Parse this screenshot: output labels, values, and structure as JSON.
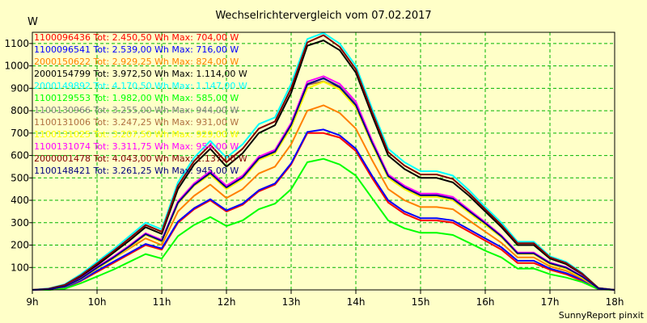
{
  "chart_data": {
    "type": "line",
    "title": "Wechselrichtervergleich vom 07.02.2017",
    "ylabel": "W",
    "ylim": [
      0,
      1150
    ],
    "yticks": [
      100,
      200,
      300,
      400,
      500,
      600,
      700,
      800,
      900,
      1000,
      1100
    ],
    "xlabels": [
      "9h",
      "10h",
      "11h",
      "12h",
      "13h",
      "14h",
      "15h",
      "16h",
      "17h",
      "18h"
    ],
    "xlim": [
      9,
      18
    ],
    "grid": true,
    "legend_position": "top-left",
    "footer": "SunnyReport pinxit",
    "x": [
      9,
      9.25,
      9.5,
      9.75,
      10,
      10.25,
      10.5,
      10.75,
      11,
      11.25,
      11.5,
      11.75,
      12,
      12.25,
      12.5,
      12.75,
      13,
      13.25,
      13.5,
      13.75,
      14,
      14.25,
      14.5,
      14.75,
      15,
      15.25,
      15.5,
      15.75,
      16,
      16.25,
      16.5,
      16.75,
      17,
      17.25,
      17.5,
      17.75,
      18
    ],
    "series": [
      {
        "name": "1100096436 Tot: 2.450,50 Wh Max: 704,00 W",
        "color": "#ff0000",
        "values": [
          0,
          0,
          10,
          40,
          80,
          120,
          160,
          200,
          180,
          300,
          360,
          400,
          350,
          380,
          440,
          470,
          560,
          700,
          700,
          680,
          620,
          500,
          390,
          340,
          310,
          310,
          300,
          260,
          220,
          180,
          120,
          120,
          90,
          70,
          40,
          5,
          0
        ]
      },
      {
        "name": "1100096541 Tot: 2.539,00 Wh Max: 716,00 W",
        "color": "#0000ff",
        "values": [
          0,
          0,
          12,
          42,
          85,
          125,
          165,
          205,
          185,
          305,
          365,
          405,
          355,
          385,
          445,
          475,
          565,
          705,
          716,
          690,
          630,
          510,
          400,
          350,
          320,
          320,
          310,
          270,
          230,
          190,
          130,
          130,
          95,
          75,
          45,
          5,
          0
        ]
      },
      {
        "name": "2000150622 Tot: 2.929,25 Wh Max: 824,00 W",
        "color": "#ff8000",
        "values": [
          0,
          0,
          15,
          50,
          95,
          140,
          185,
          230,
          200,
          350,
          420,
          470,
          410,
          450,
          520,
          550,
          650,
          800,
          824,
          790,
          720,
          580,
          450,
          400,
          370,
          370,
          360,
          310,
          260,
          210,
          145,
          145,
          105,
          85,
          50,
          6,
          0
        ]
      },
      {
        "name": "2000154799 Tot: 3.972,50 Wh Max: 1.114,00 W",
        "color": "#000000",
        "values": [
          0,
          5,
          20,
          60,
          110,
          165,
          220,
          280,
          250,
          450,
          560,
          630,
          550,
          610,
          700,
          735,
          880,
          1090,
          1114,
          1070,
          970,
          780,
          600,
          540,
          500,
          500,
          480,
          420,
          350,
          280,
          200,
          200,
          140,
          115,
          70,
          8,
          0
        ]
      },
      {
        "name": "2000149892 Tot: 4.170,50 Wh Max: 1.147,00 W",
        "color": "#00ffff",
        "values": [
          0,
          6,
          25,
          70,
          125,
          180,
          240,
          300,
          270,
          480,
          590,
          665,
          590,
          650,
          740,
          770,
          920,
          1120,
          1147,
          1100,
          1000,
          810,
          630,
          570,
          530,
          530,
          510,
          445,
          370,
          300,
          215,
          215,
          150,
          125,
          75,
          8,
          0
        ]
      },
      {
        "name": "1100129553 Tot: 1.982,00 Wh Max: 585,00 W",
        "color": "#00ff00",
        "values": [
          0,
          0,
          5,
          30,
          60,
          90,
          125,
          160,
          140,
          240,
          290,
          325,
          285,
          310,
          360,
          385,
          450,
          570,
          585,
          560,
          510,
          410,
          310,
          275,
          255,
          255,
          245,
          210,
          175,
          145,
          95,
          95,
          70,
          55,
          35,
          3,
          0
        ]
      },
      {
        "name": "1100130966 Tot: 3.255,00 Wh Max: 944,00 W",
        "color": "#808080",
        "values": [
          0,
          2,
          15,
          50,
          100,
          145,
          195,
          250,
          220,
          390,
          470,
          525,
          460,
          505,
          590,
          620,
          740,
          920,
          944,
          910,
          830,
          660,
          510,
          460,
          425,
          425,
          410,
          355,
          300,
          240,
          165,
          165,
          120,
          100,
          60,
          6,
          0
        ]
      },
      {
        "name": "1100131006 Tot: 3.247,25 Wh Max: 931,00 W",
        "color": "#b07040",
        "values": [
          0,
          2,
          15,
          50,
          98,
          143,
          193,
          248,
          218,
          388,
          468,
          520,
          455,
          500,
          585,
          615,
          735,
          915,
          931,
          900,
          820,
          655,
          505,
          455,
          420,
          420,
          405,
          350,
          295,
          238,
          162,
          162,
          118,
          98,
          58,
          6,
          0
        ]
      },
      {
        "name": "1100131025 Tot: 3.207,50 Wh Max: 929,00 W",
        "color": "#ffff00",
        "values": [
          0,
          2,
          14,
          48,
          95,
          140,
          190,
          245,
          215,
          385,
          465,
          515,
          450,
          495,
          580,
          610,
          725,
          900,
          929,
          895,
          815,
          650,
          500,
          450,
          415,
          415,
          400,
          345,
          290,
          235,
          160,
          160,
          115,
          95,
          55,
          6,
          0
        ]
      },
      {
        "name": "1100131074 Tot: 3.311,75 Wh Max: 954,00 W",
        "color": "#ff00ff",
        "values": [
          0,
          2,
          16,
          52,
          102,
          148,
          198,
          253,
          223,
          395,
          476,
          530,
          465,
          510,
          595,
          625,
          745,
          930,
          954,
          920,
          840,
          668,
          515,
          465,
          430,
          430,
          415,
          358,
          302,
          243,
          167,
          167,
          122,
          102,
          61,
          6,
          0
        ]
      },
      {
        "name": "2000001478 Tot: 4.043,00 Wh Max: 1.137,00 W",
        "color": "#800000",
        "values": [
          0,
          5,
          22,
          65,
          118,
          172,
          230,
          290,
          260,
          465,
          575,
          648,
          570,
          630,
          720,
          752,
          900,
          1105,
          1137,
          1085,
          985,
          795,
          615,
          555,
          515,
          515,
          495,
          432,
          360,
          290,
          208,
          208,
          145,
          120,
          72,
          8,
          0
        ]
      },
      {
        "name": "1100148421 Tot: 3.261,25 Wh Max: 945,00 W",
        "color": "#000080",
        "values": [
          0,
          2,
          15,
          50,
          99,
          144,
          194,
          249,
          219,
          389,
          469,
          522,
          457,
          502,
          587,
          617,
          737,
          918,
          945,
          905,
          825,
          658,
          508,
          458,
          422,
          422,
          407,
          352,
          297,
          239,
          163,
          163,
          119,
          99,
          59,
          6,
          0
        ]
      }
    ]
  }
}
